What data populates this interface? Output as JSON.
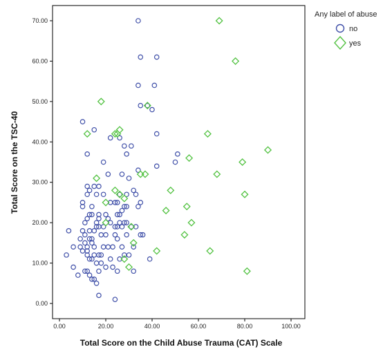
{
  "chart_data": {
    "type": "scatter",
    "title": "",
    "xlabel": "Total Score on the Child Abuse Trauma (CAT) Scale",
    "ylabel": "Total Score on the TSC-40",
    "xlim": [
      0,
      100
    ],
    "ylim": [
      0,
      70
    ],
    "xticks": [
      "0.00",
      "20.00",
      "40.00",
      "60.00",
      "80.00",
      "100.00"
    ],
    "yticks": [
      "0.00",
      "10.00",
      "20.00",
      "30.00",
      "40.00",
      "50.00",
      "60.00",
      "70.00"
    ],
    "grid": false,
    "legend": {
      "title": "Any label of abuse",
      "placement": "top-right"
    },
    "series": [
      {
        "name": "no",
        "marker": "circle",
        "color": "#3f4fa8",
        "points": [
          [
            34,
            70
          ],
          [
            35,
            61
          ],
          [
            42,
            61
          ],
          [
            34,
            54
          ],
          [
            41,
            54
          ],
          [
            35,
            49
          ],
          [
            38,
            49
          ],
          [
            40,
            48
          ],
          [
            10,
            45
          ],
          [
            15,
            43
          ],
          [
            42,
            42
          ],
          [
            22,
            41
          ],
          [
            26,
            41
          ],
          [
            28,
            39
          ],
          [
            31,
            39
          ],
          [
            12,
            37
          ],
          [
            29,
            37
          ],
          [
            51,
            37
          ],
          [
            19,
            35
          ],
          [
            50,
            35
          ],
          [
            42,
            34
          ],
          [
            34,
            33
          ],
          [
            21,
            32
          ],
          [
            27,
            32
          ],
          [
            30,
            31
          ],
          [
            32,
            28
          ],
          [
            12,
            29
          ],
          [
            15,
            29
          ],
          [
            17,
            29
          ],
          [
            13,
            28
          ],
          [
            12,
            27
          ],
          [
            19,
            27
          ],
          [
            16,
            27
          ],
          [
            29,
            27
          ],
          [
            26,
            27
          ],
          [
            33,
            27
          ],
          [
            22,
            25
          ],
          [
            24,
            25
          ],
          [
            25,
            25
          ],
          [
            35,
            25
          ],
          [
            10,
            25
          ],
          [
            14,
            24
          ],
          [
            10,
            24
          ],
          [
            28,
            24
          ],
          [
            29,
            24
          ],
          [
            34,
            24
          ],
          [
            13,
            22
          ],
          [
            14,
            22
          ],
          [
            12,
            21
          ],
          [
            17,
            22
          ],
          [
            20,
            22
          ],
          [
            25,
            22
          ],
          [
            26,
            22
          ],
          [
            27,
            23
          ],
          [
            11,
            20
          ],
          [
            16,
            20
          ],
          [
            17,
            21
          ],
          [
            21,
            21
          ],
          [
            22,
            20
          ],
          [
            26,
            20
          ],
          [
            28,
            20
          ],
          [
            29,
            20
          ],
          [
            4,
            18
          ],
          [
            10,
            18
          ],
          [
            13,
            18
          ],
          [
            15,
            18
          ],
          [
            11,
            17
          ],
          [
            16,
            19
          ],
          [
            17,
            19
          ],
          [
            19,
            19
          ],
          [
            24,
            19
          ],
          [
            25,
            19
          ],
          [
            27,
            19
          ],
          [
            31,
            19
          ],
          [
            33,
            19
          ],
          [
            9,
            16
          ],
          [
            11,
            15
          ],
          [
            12,
            14
          ],
          [
            14,
            16
          ],
          [
            18,
            17
          ],
          [
            20,
            17
          ],
          [
            24,
            17
          ],
          [
            25,
            16
          ],
          [
            29,
            17
          ],
          [
            35,
            17
          ],
          [
            36,
            17
          ],
          [
            6,
            14
          ],
          [
            9,
            14
          ],
          [
            10,
            13
          ],
          [
            12,
            13
          ],
          [
            13,
            16
          ],
          [
            14,
            15
          ],
          [
            15,
            14
          ],
          [
            19,
            14
          ],
          [
            21,
            14
          ],
          [
            23,
            14
          ],
          [
            27,
            14
          ],
          [
            32,
            14
          ],
          [
            3,
            12
          ],
          [
            12,
            12
          ],
          [
            13,
            11
          ],
          [
            14,
            11
          ],
          [
            15,
            12
          ],
          [
            17,
            12
          ],
          [
            18,
            12
          ],
          [
            22,
            11
          ],
          [
            26,
            11
          ],
          [
            28,
            12
          ],
          [
            30,
            12
          ],
          [
            6,
            9
          ],
          [
            8,
            7
          ],
          [
            11,
            8
          ],
          [
            12,
            8
          ],
          [
            13,
            7
          ],
          [
            14,
            6
          ],
          [
            15,
            6
          ],
          [
            16,
            5
          ],
          [
            17,
            8
          ],
          [
            20,
            9
          ],
          [
            23,
            9
          ],
          [
            25,
            8
          ],
          [
            32,
            8
          ],
          [
            39,
            11
          ],
          [
            17,
            2
          ],
          [
            24,
            1
          ],
          [
            16,
            10
          ],
          [
            18,
            10
          ]
        ]
      },
      {
        "name": "yes",
        "marker": "diamond",
        "color": "#52c241",
        "points": [
          [
            69,
            70
          ],
          [
            76,
            60
          ],
          [
            18,
            50
          ],
          [
            38,
            49
          ],
          [
            26,
            43
          ],
          [
            12,
            42
          ],
          [
            24,
            42
          ],
          [
            25,
            42
          ],
          [
            64,
            42
          ],
          [
            90,
            38
          ],
          [
            56,
            36
          ],
          [
            79,
            35
          ],
          [
            35,
            32
          ],
          [
            37,
            32
          ],
          [
            68,
            32
          ],
          [
            16,
            31
          ],
          [
            28,
            26
          ],
          [
            24,
            28
          ],
          [
            48,
            28
          ],
          [
            80,
            27
          ],
          [
            26,
            27
          ],
          [
            55,
            24
          ],
          [
            20,
            25
          ],
          [
            46,
            23
          ],
          [
            57,
            20
          ],
          [
            20,
            20
          ],
          [
            31,
            19
          ],
          [
            54,
            17
          ],
          [
            32,
            15
          ],
          [
            42,
            13
          ],
          [
            65,
            13
          ],
          [
            28,
            11
          ],
          [
            30,
            9
          ],
          [
            81,
            8
          ]
        ]
      }
    ]
  }
}
